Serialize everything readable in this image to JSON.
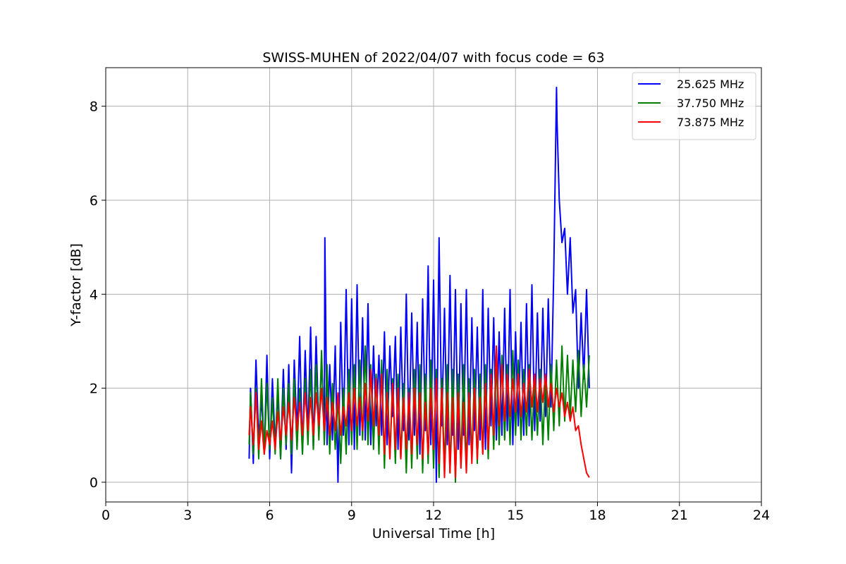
{
  "chart_data": {
    "type": "line",
    "title": "SWISS-MUHEN of 2022/04/07 with focus code = 63",
    "xlabel": "Universal Time [h]",
    "ylabel": "Y-factor [dB]",
    "xlim": [
      0,
      24
    ],
    "ylim": [
      -0.42,
      8.82
    ],
    "xticks": [
      0,
      3,
      6,
      9,
      12,
      15,
      18,
      21,
      24
    ],
    "yticks": [
      0,
      2,
      4,
      6,
      8
    ],
    "grid": true,
    "legend_position": "top-right",
    "series": [
      {
        "name": "25.625 MHz",
        "color": "#0000ff",
        "x": [
          5.25,
          5.3,
          5.4,
          5.5,
          5.6,
          5.7,
          5.8,
          5.9,
          6.0,
          6.1,
          6.2,
          6.3,
          6.4,
          6.5,
          6.6,
          6.7,
          6.8,
          6.9,
          7.0,
          7.1,
          7.2,
          7.3,
          7.4,
          7.5,
          7.6,
          7.7,
          7.8,
          7.9,
          8.0,
          8.02,
          8.1,
          8.2,
          8.3,
          8.4,
          8.5,
          8.6,
          8.7,
          8.8,
          8.9,
          9.0,
          9.1,
          9.2,
          9.3,
          9.4,
          9.5,
          9.6,
          9.7,
          9.8,
          9.9,
          10.0,
          10.1,
          10.2,
          10.3,
          10.4,
          10.5,
          10.6,
          10.7,
          10.8,
          10.9,
          11.0,
          11.1,
          11.2,
          11.3,
          11.4,
          11.5,
          11.6,
          11.7,
          11.8,
          11.9,
          12.0,
          12.1,
          12.2,
          12.3,
          12.4,
          12.5,
          12.6,
          12.7,
          12.8,
          12.9,
          13.0,
          13.1,
          13.2,
          13.3,
          13.4,
          13.5,
          13.6,
          13.7,
          13.8,
          13.9,
          14.0,
          14.1,
          14.2,
          14.3,
          14.4,
          14.5,
          14.6,
          14.7,
          14.8,
          14.9,
          15.0,
          15.1,
          15.2,
          15.3,
          15.4,
          15.5,
          15.6,
          15.7,
          15.8,
          15.9,
          16.0,
          16.1,
          16.2,
          16.3,
          16.4,
          16.5,
          16.52,
          16.6,
          16.7,
          16.8,
          16.9,
          17.0,
          17.1,
          17.2,
          17.3,
          17.4,
          17.5,
          17.6,
          17.7
        ],
        "y": [
          0.5,
          2.0,
          0.4,
          2.6,
          0.9,
          1.8,
          0.6,
          2.7,
          0.5,
          2.2,
          0.8,
          1.9,
          0.5,
          2.4,
          0.7,
          2.5,
          0.2,
          2.6,
          1.0,
          3.1,
          0.6,
          2.8,
          1.0,
          3.3,
          0.7,
          3.1,
          1.0,
          2.6,
          1.1,
          5.2,
          0.8,
          2.5,
          0.9,
          2.9,
          0.0,
          3.4,
          1.0,
          4.1,
          0.8,
          3.9,
          0.7,
          4.2,
          1.0,
          3.5,
          0.9,
          3.8,
          0.8,
          2.9,
          1.2,
          2.7,
          1.0,
          3.2,
          0.8,
          2.9,
          1.4,
          3.1,
          0.7,
          3.3,
          1.1,
          4.0,
          0.9,
          3.6,
          1.0,
          3.4,
          0.6,
          3.9,
          1.1,
          4.6,
          0.8,
          4.3,
          0.0,
          5.2,
          1.2,
          3.7,
          0.8,
          4.4,
          1.0,
          4.1,
          0.7,
          3.8,
          1.0,
          4.1,
          0.8,
          3.5,
          1.1,
          3.3,
          0.9,
          4.1,
          0.7,
          3.7,
          1.2,
          3.5,
          0.9,
          3.2,
          1.0,
          3.7,
          1.1,
          4.1,
          0.8,
          3.2,
          1.2,
          3.4,
          1.0,
          3.8,
          1.2,
          4.2,
          1.1,
          3.6,
          1.3,
          3.7,
          1.4,
          3.9,
          1.6,
          4.5,
          8.4,
          7.7,
          6.0,
          5.1,
          5.4,
          4.0,
          5.2,
          3.6,
          4.1,
          2.0,
          3.6,
          2.2,
          4.1,
          2.0
        ]
      },
      {
        "name": "37.750 MHz",
        "color": "#008000",
        "x": [
          5.25,
          5.3,
          5.4,
          5.5,
          5.6,
          5.7,
          5.8,
          5.9,
          6.0,
          6.1,
          6.2,
          6.3,
          6.4,
          6.5,
          6.6,
          6.7,
          6.8,
          6.9,
          7.0,
          7.1,
          7.2,
          7.3,
          7.4,
          7.5,
          7.6,
          7.7,
          7.8,
          7.9,
          8.0,
          8.1,
          8.2,
          8.3,
          8.4,
          8.5,
          8.6,
          8.7,
          8.8,
          8.9,
          9.0,
          9.1,
          9.2,
          9.3,
          9.4,
          9.5,
          9.6,
          9.7,
          9.8,
          9.9,
          10.0,
          10.1,
          10.2,
          10.3,
          10.4,
          10.5,
          10.6,
          10.7,
          10.8,
          10.9,
          11.0,
          11.1,
          11.2,
          11.3,
          11.4,
          11.5,
          11.6,
          11.7,
          11.8,
          11.9,
          12.0,
          12.1,
          12.2,
          12.3,
          12.4,
          12.5,
          12.6,
          12.7,
          12.8,
          12.9,
          13.0,
          13.1,
          13.2,
          13.3,
          13.4,
          13.5,
          13.6,
          13.7,
          13.8,
          13.9,
          14.0,
          14.1,
          14.2,
          14.3,
          14.4,
          14.5,
          14.6,
          14.7,
          14.8,
          14.9,
          15.0,
          15.1,
          15.2,
          15.3,
          15.4,
          15.5,
          15.6,
          15.7,
          15.8,
          15.9,
          16.0,
          16.1,
          16.2,
          16.3,
          16.4,
          16.5,
          16.6,
          16.7,
          16.8,
          16.9,
          17.0,
          17.1,
          17.2,
          17.3,
          17.4,
          17.5,
          17.6,
          17.7
        ],
        "y": [
          0.8,
          1.9,
          0.6,
          2.0,
          0.5,
          2.2,
          0.6,
          2.1,
          0.7,
          1.8,
          0.6,
          2.2,
          0.5,
          2.0,
          0.8,
          2.1,
          0.6,
          2.2,
          0.7,
          2.0,
          0.6,
          2.2,
          0.8,
          2.4,
          0.7,
          2.5,
          0.9,
          2.8,
          0.8,
          2.5,
          0.6,
          2.1,
          0.7,
          1.8,
          0.4,
          2.0,
          0.6,
          2.4,
          0.8,
          2.5,
          0.7,
          2.6,
          0.9,
          2.9,
          0.8,
          2.5,
          0.7,
          2.3,
          0.6,
          2.6,
          0.3,
          2.4,
          0.5,
          2.2,
          0.4,
          2.3,
          0.5,
          2.1,
          0.2,
          2.0,
          0.3,
          2.4,
          0.5,
          2.5,
          0.2,
          2.3,
          0.4,
          2.6,
          0.3,
          2.4,
          0.1,
          2.2,
          0.3,
          2.5,
          0.2,
          2.4,
          0.0,
          2.3,
          0.4,
          2.5,
          0.3,
          2.2,
          0.5,
          2.4,
          0.4,
          2.3,
          0.6,
          2.5,
          0.5,
          2.4,
          0.7,
          2.6,
          0.8,
          2.7,
          0.9,
          2.5,
          0.8,
          2.8,
          1.0,
          2.6,
          0.9,
          2.4,
          1.0,
          2.5,
          0.9,
          2.3,
          1.0,
          2.4,
          0.8,
          2.3,
          0.9,
          2.5,
          1.1,
          2.6,
          1.2,
          2.9,
          1.3,
          2.7,
          1.4,
          2.6,
          1.5,
          2.8,
          1.4,
          2.5,
          1.6,
          2.7
        ]
      },
      {
        "name": "73.875 MHz",
        "color": "#ff0000",
        "x": [
          5.25,
          5.3,
          5.4,
          5.5,
          5.6,
          5.7,
          5.8,
          5.9,
          6.0,
          6.1,
          6.2,
          6.3,
          6.4,
          6.5,
          6.6,
          6.7,
          6.8,
          6.9,
          7.0,
          7.1,
          7.2,
          7.3,
          7.4,
          7.5,
          7.6,
          7.7,
          7.8,
          7.9,
          8.0,
          8.1,
          8.2,
          8.3,
          8.4,
          8.5,
          8.6,
          8.7,
          8.8,
          8.9,
          9.0,
          9.1,
          9.2,
          9.3,
          9.4,
          9.5,
          9.6,
          9.7,
          9.8,
          9.9,
          10.0,
          10.1,
          10.2,
          10.3,
          10.4,
          10.5,
          10.6,
          10.7,
          10.8,
          10.9,
          11.0,
          11.1,
          11.2,
          11.3,
          11.4,
          11.5,
          11.6,
          11.7,
          11.8,
          11.9,
          12.0,
          12.1,
          12.2,
          12.3,
          12.4,
          12.5,
          12.6,
          12.7,
          12.8,
          12.9,
          13.0,
          13.1,
          13.2,
          13.3,
          13.4,
          13.5,
          13.6,
          13.7,
          13.8,
          13.9,
          14.0,
          14.1,
          14.2,
          14.3,
          14.4,
          14.5,
          14.6,
          14.7,
          14.8,
          14.9,
          15.0,
          15.1,
          15.2,
          15.3,
          15.4,
          15.5,
          15.6,
          15.7,
          15.8,
          15.9,
          16.0,
          16.1,
          16.2,
          16.3,
          16.4,
          16.5,
          16.6,
          16.7,
          16.8,
          16.9,
          17.0,
          17.1,
          17.2,
          17.3,
          17.4,
          17.5,
          17.6,
          17.7
        ],
        "y": [
          1.0,
          1.6,
          0.8,
          1.9,
          0.7,
          1.3,
          0.6,
          1.1,
          0.8,
          1.3,
          0.7,
          1.5,
          0.9,
          1.6,
          1.0,
          1.7,
          0.9,
          1.8,
          1.1,
          1.7,
          1.0,
          1.9,
          1.1,
          1.8,
          1.0,
          1.9,
          1.2,
          2.0,
          1.1,
          1.8,
          1.0,
          1.7,
          1.1,
          1.9,
          1.0,
          1.6,
          1.2,
          1.9,
          1.1,
          2.0,
          1.2,
          1.8,
          1.1,
          2.1,
          1.3,
          2.4,
          1.2,
          2.2,
          1.0,
          2.3,
          0.6,
          1.9,
          0.5,
          2.1,
          0.7,
          2.0,
          0.5,
          1.8,
          0.7,
          1.9,
          0.6,
          2.0,
          0.8,
          1.9,
          0.5,
          1.7,
          0.6,
          2.0,
          0.7,
          2.2,
          0.4,
          2.0,
          0.1,
          1.9,
          0.2,
          1.8,
          0.1,
          1.9,
          0.3,
          1.7,
          0.2,
          1.9,
          0.4,
          2.0,
          0.5,
          1.8,
          0.6,
          2.1,
          0.7,
          2.3,
          1.0,
          2.9,
          1.2,
          2.5,
          1.3,
          2.3,
          1.4,
          2.2,
          1.5,
          2.3,
          1.4,
          2.1,
          1.5,
          2.4,
          1.6,
          2.3,
          1.5,
          2.2,
          1.7,
          2.3,
          1.6,
          2.1,
          1.5,
          2.0,
          1.6,
          1.9,
          1.4,
          1.7,
          1.3,
          1.6,
          1.1,
          1.2,
          0.8,
          0.5,
          0.2,
          0.1
        ]
      }
    ]
  }
}
